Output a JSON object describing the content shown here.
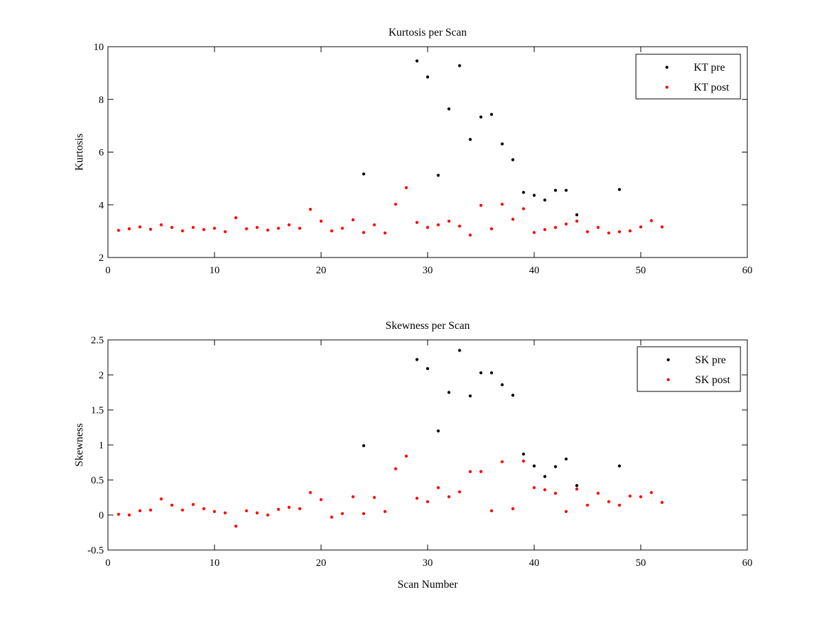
{
  "chart_data": [
    {
      "type": "scatter",
      "title": "Kurtosis per Scan",
      "xlabel": "",
      "ylabel": "Kurtosis",
      "xlim": [
        0,
        60
      ],
      "ylim": [
        2,
        10
      ],
      "xticks": [
        0,
        10,
        20,
        30,
        40,
        50,
        60
      ],
      "yticks": [
        2,
        4,
        6,
        8,
        10
      ],
      "grid": false,
      "legend_position": "top-right",
      "series": [
        {
          "name": "KT pre",
          "color": "#000000",
          "points": [
            [
              24,
              5.17
            ],
            [
              29,
              9.46
            ],
            [
              30,
              8.85
            ],
            [
              31,
              5.12
            ],
            [
              32,
              7.64
            ],
            [
              33,
              9.28
            ],
            [
              34,
              6.48
            ],
            [
              35,
              7.33
            ],
            [
              36,
              7.43
            ],
            [
              37,
              6.31
            ],
            [
              38,
              5.71
            ],
            [
              39,
              4.47
            ],
            [
              40,
              4.36
            ],
            [
              41,
              4.18
            ],
            [
              42,
              4.55
            ],
            [
              43,
              4.55
            ],
            [
              44,
              3.62
            ],
            [
              48,
              4.58
            ]
          ]
        },
        {
          "name": "KT post",
          "color": "#ff0000",
          "points": [
            [
              1,
              3.03
            ],
            [
              2,
              3.09
            ],
            [
              3,
              3.16
            ],
            [
              4,
              3.07
            ],
            [
              5,
              3.24
            ],
            [
              6,
              3.14
            ],
            [
              7,
              3.01
            ],
            [
              8,
              3.14
            ],
            [
              9,
              3.06
            ],
            [
              10,
              3.11
            ],
            [
              11,
              2.98
            ],
            [
              12,
              3.51
            ],
            [
              13,
              3.09
            ],
            [
              14,
              3.14
            ],
            [
              15,
              3.04
            ],
            [
              16,
              3.11
            ],
            [
              17,
              3.24
            ],
            [
              18,
              3.11
            ],
            [
              19,
              3.83
            ],
            [
              20,
              3.38
            ],
            [
              21,
              3.01
            ],
            [
              22,
              3.11
            ],
            [
              23,
              3.43
            ],
            [
              24,
              2.95
            ],
            [
              25,
              3.24
            ],
            [
              26,
              2.93
            ],
            [
              27,
              4.02
            ],
            [
              28,
              4.65
            ],
            [
              29,
              3.33
            ],
            [
              30,
              3.14
            ],
            [
              31,
              3.24
            ],
            [
              32,
              3.38
            ],
            [
              33,
              3.19
            ],
            [
              34,
              2.85
            ],
            [
              35,
              3.98
            ],
            [
              36,
              3.09
            ],
            [
              37,
              4.02
            ],
            [
              38,
              3.45
            ],
            [
              39,
              3.85
            ],
            [
              40,
              2.95
            ],
            [
              41,
              3.06
            ],
            [
              42,
              3.14
            ],
            [
              43,
              3.27
            ],
            [
              44,
              3.38
            ],
            [
              45,
              2.98
            ],
            [
              46,
              3.14
            ],
            [
              47,
              2.93
            ],
            [
              48,
              2.98
            ],
            [
              49,
              3.01
            ],
            [
              50,
              3.16
            ],
            [
              51,
              3.4
            ],
            [
              52,
              3.16
            ]
          ]
        }
      ]
    },
    {
      "type": "scatter",
      "title": "Skewness per Scan",
      "xlabel": "Scan Number",
      "ylabel": "Skewness",
      "xlim": [
        0,
        60
      ],
      "ylim": [
        -0.5,
        2.5
      ],
      "xticks": [
        0,
        10,
        20,
        30,
        40,
        50,
        60
      ],
      "yticks": [
        -0.5,
        0,
        0.5,
        1,
        1.5,
        2,
        2.5
      ],
      "yticklabels": [
        "-0.5",
        "0",
        "0.5",
        "1",
        "1.5",
        "2",
        "2.5"
      ],
      "grid": false,
      "legend_position": "top-right",
      "series": [
        {
          "name": "SK pre",
          "color": "#000000",
          "points": [
            [
              24,
              0.99
            ],
            [
              29,
              2.22
            ],
            [
              30,
              2.09
            ],
            [
              31,
              1.2
            ],
            [
              32,
              1.75
            ],
            [
              33,
              2.35
            ],
            [
              34,
              1.7
            ],
            [
              35,
              2.03
            ],
            [
              36,
              2.03
            ],
            [
              37,
              1.86
            ],
            [
              38,
              1.71
            ],
            [
              39,
              0.87
            ],
            [
              40,
              0.7
            ],
            [
              41,
              0.55
            ],
            [
              42,
              0.69
            ],
            [
              43,
              0.8
            ],
            [
              44,
              0.42
            ],
            [
              48,
              0.7
            ]
          ]
        },
        {
          "name": "SK post",
          "color": "#ff0000",
          "points": [
            [
              1,
              0.01
            ],
            [
              2,
              0.0
            ],
            [
              3,
              0.06
            ],
            [
              4,
              0.07
            ],
            [
              5,
              0.23
            ],
            [
              6,
              0.14
            ],
            [
              7,
              0.07
            ],
            [
              8,
              0.15
            ],
            [
              9,
              0.09
            ],
            [
              10,
              0.05
            ],
            [
              11,
              0.03
            ],
            [
              12,
              -0.16
            ],
            [
              13,
              0.06
            ],
            [
              14,
              0.03
            ],
            [
              15,
              0.0
            ],
            [
              16,
              0.08
            ],
            [
              17,
              0.11
            ],
            [
              18,
              0.09
            ],
            [
              19,
              0.32
            ],
            [
              20,
              0.22
            ],
            [
              21,
              -0.03
            ],
            [
              22,
              0.02
            ],
            [
              23,
              0.26
            ],
            [
              24,
              0.02
            ],
            [
              25,
              0.25
            ],
            [
              26,
              0.05
            ],
            [
              27,
              0.66
            ],
            [
              28,
              0.84
            ],
            [
              29,
              0.24
            ],
            [
              30,
              0.19
            ],
            [
              31,
              0.39
            ],
            [
              32,
              0.26
            ],
            [
              33,
              0.33
            ],
            [
              34,
              0.62
            ],
            [
              35,
              0.62
            ],
            [
              36,
              0.06
            ],
            [
              37,
              0.76
            ],
            [
              38,
              0.09
            ],
            [
              39,
              0.77
            ],
            [
              40,
              0.39
            ],
            [
              41,
              0.36
            ],
            [
              42,
              0.31
            ],
            [
              43,
              0.05
            ],
            [
              44,
              0.37
            ],
            [
              45,
              0.14
            ],
            [
              46,
              0.31
            ],
            [
              47,
              0.19
            ],
            [
              48,
              0.14
            ],
            [
              49,
              0.27
            ],
            [
              50,
              0.26
            ],
            [
              51,
              0.32
            ],
            [
              52,
              0.18
            ]
          ]
        }
      ]
    }
  ]
}
